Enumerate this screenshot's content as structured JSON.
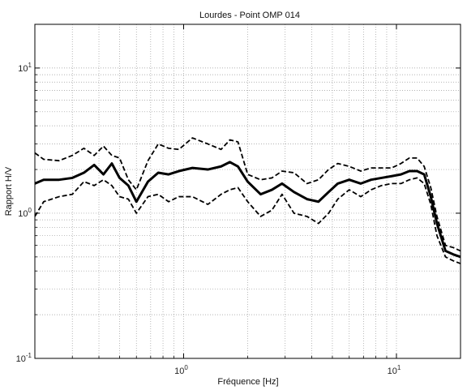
{
  "chart_data": {
    "type": "line",
    "title": "Lourdes - Point OMP 014",
    "xlabel": "Fréquence [Hz]",
    "ylabel": "Rapport H/V",
    "xscale": "log",
    "yscale": "log",
    "xlim": [
      0.2,
      20
    ],
    "ylim": [
      0.1,
      20
    ],
    "grid": true,
    "grid_style": "dotted",
    "x_ticks": [
      {
        "value": 1,
        "base": "10",
        "exp": "0"
      },
      {
        "value": 10,
        "base": "10",
        "exp": "1"
      }
    ],
    "y_ticks": [
      {
        "value": 0.1,
        "base": "10",
        "exp": "-1"
      },
      {
        "value": 1,
        "base": "10",
        "exp": "0"
      },
      {
        "value": 10,
        "base": "10",
        "exp": "1"
      }
    ],
    "series": [
      {
        "style": "solid-thick",
        "color": "#000000",
        "x": [
          0.2,
          0.22,
          0.26,
          0.3,
          0.34,
          0.38,
          0.42,
          0.46,
          0.5,
          0.55,
          0.6,
          0.68,
          0.76,
          0.85,
          0.95,
          1.1,
          1.3,
          1.5,
          1.65,
          1.8,
          2.0,
          2.3,
          2.6,
          2.9,
          3.3,
          3.8,
          4.3,
          4.8,
          5.3,
          6.0,
          6.8,
          7.6,
          8.5,
          9.5,
          10.5,
          11.5,
          12.5,
          13.5,
          14.5,
          15.5,
          17.0,
          18.5,
          20.0
        ],
        "y": [
          1.6,
          1.7,
          1.7,
          1.75,
          1.9,
          2.15,
          1.85,
          2.2,
          1.75,
          1.55,
          1.2,
          1.65,
          1.9,
          1.85,
          1.95,
          2.05,
          2.0,
          2.1,
          2.25,
          2.1,
          1.65,
          1.35,
          1.45,
          1.6,
          1.4,
          1.25,
          1.2,
          1.4,
          1.6,
          1.7,
          1.6,
          1.7,
          1.75,
          1.8,
          1.85,
          1.95,
          1.95,
          1.85,
          1.3,
          0.85,
          0.55,
          0.52,
          0.5
        ]
      },
      {
        "style": "dashed",
        "color": "#000000",
        "x": [
          0.2,
          0.22,
          0.26,
          0.3,
          0.34,
          0.38,
          0.42,
          0.46,
          0.5,
          0.55,
          0.6,
          0.68,
          0.76,
          0.85,
          0.95,
          1.1,
          1.3,
          1.5,
          1.65,
          1.8,
          2.0,
          2.3,
          2.6,
          2.9,
          3.3,
          3.8,
          4.3,
          4.8,
          5.3,
          6.0,
          6.8,
          7.6,
          8.5,
          9.5,
          10.5,
          11.5,
          12.5,
          13.5,
          14.5,
          15.5,
          17.0,
          18.5,
          20.0
        ],
        "y": [
          2.6,
          2.35,
          2.3,
          2.5,
          2.8,
          2.5,
          2.9,
          2.5,
          2.4,
          1.7,
          1.45,
          2.3,
          3.0,
          2.8,
          2.75,
          3.3,
          3.0,
          2.75,
          3.2,
          3.1,
          1.85,
          1.7,
          1.75,
          1.95,
          1.9,
          1.6,
          1.7,
          2.0,
          2.2,
          2.1,
          1.95,
          2.05,
          2.05,
          2.05,
          2.2,
          2.4,
          2.4,
          2.1,
          1.5,
          0.95,
          0.6,
          0.58,
          0.55
        ]
      },
      {
        "style": "dashed",
        "color": "#000000",
        "x": [
          0.2,
          0.22,
          0.26,
          0.3,
          0.34,
          0.38,
          0.42,
          0.46,
          0.5,
          0.55,
          0.6,
          0.68,
          0.76,
          0.85,
          0.95,
          1.1,
          1.3,
          1.5,
          1.65,
          1.8,
          2.0,
          2.3,
          2.6,
          2.9,
          3.3,
          3.8,
          4.3,
          4.8,
          5.3,
          6.0,
          6.8,
          7.6,
          8.5,
          9.5,
          10.5,
          11.5,
          12.5,
          13.5,
          14.5,
          15.5,
          17.0,
          18.5,
          20.0
        ],
        "y": [
          0.95,
          1.2,
          1.3,
          1.35,
          1.65,
          1.55,
          1.7,
          1.55,
          1.3,
          1.25,
          1.0,
          1.3,
          1.35,
          1.2,
          1.3,
          1.3,
          1.15,
          1.35,
          1.45,
          1.5,
          1.2,
          0.95,
          1.05,
          1.35,
          1.0,
          0.95,
          0.85,
          1.0,
          1.25,
          1.45,
          1.3,
          1.45,
          1.55,
          1.6,
          1.6,
          1.7,
          1.75,
          1.6,
          1.15,
          0.7,
          0.5,
          0.47,
          0.45
        ]
      }
    ]
  }
}
